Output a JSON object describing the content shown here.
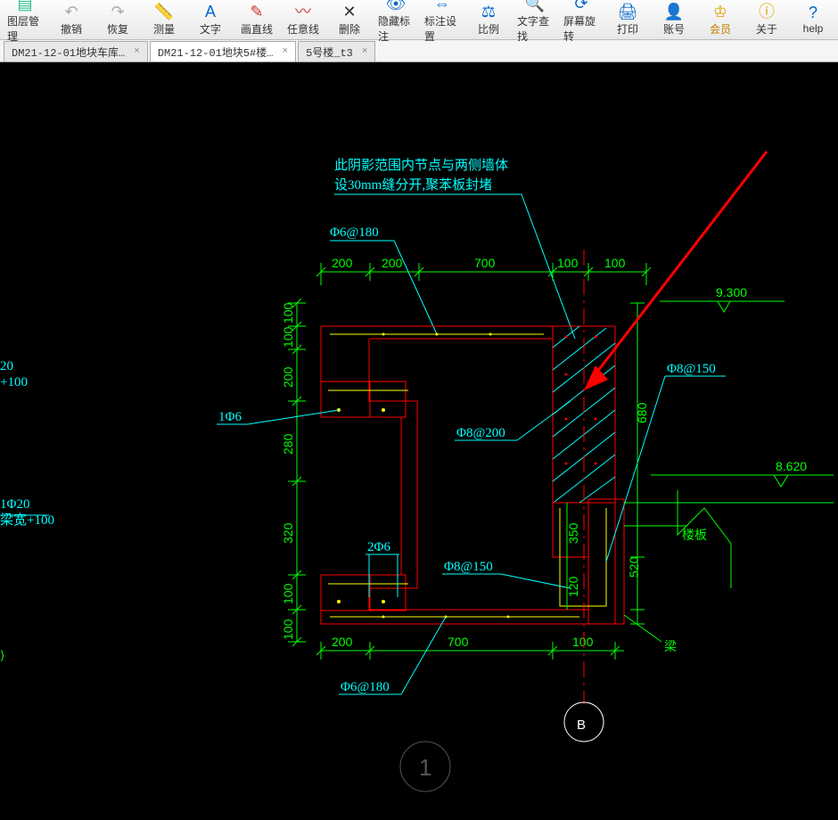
{
  "toolbar": {
    "items": [
      {
        "icon": "▤",
        "label": "图层管理",
        "color": "#2b8"
      },
      {
        "icon": "↶",
        "label": "撤销",
        "color": "#aaa"
      },
      {
        "icon": "↷",
        "label": "恢复",
        "color": "#aaa"
      },
      {
        "icon": "📏",
        "label": "测量",
        "color": "#06c"
      },
      {
        "icon": "A",
        "label": "文字",
        "color": "#06c"
      },
      {
        "icon": "✎",
        "label": "画直线",
        "color": "#c33"
      },
      {
        "icon": "〰",
        "label": "任意线",
        "color": "#c33"
      },
      {
        "icon": "✕",
        "label": "删除",
        "color": "#333"
      },
      {
        "icon": "👁",
        "label": "隐藏标注",
        "color": "#06c"
      },
      {
        "icon": "⇔",
        "label": "标注设置",
        "color": "#06c"
      },
      {
        "icon": "⚖",
        "label": "比例",
        "color": "#06c"
      },
      {
        "icon": "🔍",
        "label": "文字查找",
        "color": "#06c"
      },
      {
        "icon": "⟳",
        "label": "屏幕旋转",
        "color": "#06c"
      },
      {
        "icon": "🖨",
        "label": "打印",
        "color": "#06c"
      },
      {
        "icon": "👤",
        "label": "账号",
        "color": "#06c"
      },
      {
        "icon": "♔",
        "label": "会员",
        "color": "#e0a000"
      },
      {
        "icon": "ⓘ",
        "label": "关于",
        "color": "#e0a000"
      },
      {
        "icon": "?",
        "label": "help",
        "color": "#06c"
      }
    ]
  },
  "tabs": [
    {
      "label": "DM21-12-01地块车库…",
      "close": "×",
      "active": false
    },
    {
      "label": "DM21-12-01地块5#楼…",
      "close": "×",
      "active": true
    },
    {
      "label": "5号楼_t3",
      "close": "×",
      "active": false
    }
  ],
  "drawing": {
    "note_line1": "此阴影范围内节点与两侧墙体",
    "note_line2": "设30mm缝分开,聚苯板封堵",
    "rebar_phi6_180": "Φ6@180",
    "rebar_1phi6": "1Φ6",
    "rebar_2phi6": "2Φ6",
    "rebar_phi8_200": "Φ8@200",
    "rebar_phi8_150_r": "Φ8@150",
    "rebar_phi8_150_b": "Φ8@150",
    "rebar_phi6_180_b": "Φ6@180",
    "elev_9300": "9.300",
    "elev_8620": "8.620",
    "louban": "楼板",
    "liang": "梁",
    "grid_B": "B",
    "grid_1": "1",
    "left_frag1a": "20",
    "left_frag1b": "+100",
    "left_frag2a": "1Φ20",
    "left_frag2b": "梁宽+100",
    "dims_top": [
      "200",
      "200",
      "700",
      "100",
      "100"
    ],
    "dims_bot": [
      "200",
      "700",
      "100"
    ],
    "dims_left": [
      "100",
      "100",
      "200",
      "280",
      "320",
      "100",
      "100"
    ],
    "dims_right": [
      "680",
      "350",
      "120",
      "520"
    ],
    "colors": {
      "bg": "#000000",
      "dim": "#00ff00",
      "struct": "#ff0000",
      "rebar": "#ffff00",
      "anno": "#00ffff",
      "axis": "#ff0000",
      "arrow": "#ff0000"
    }
  }
}
